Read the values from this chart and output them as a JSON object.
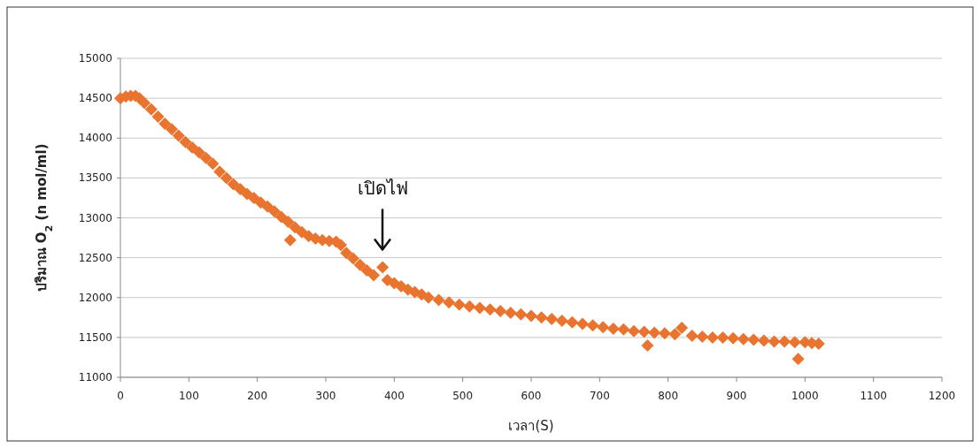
{
  "chart_data": {
    "type": "scatter",
    "xlabel": "เวลา(S)",
    "ylabel": "ปริมาณ O$_{2}$ (n mol/ml)",
    "xlim": [
      0,
      1200
    ],
    "xticks": [
      0,
      100,
      200,
      300,
      400,
      500,
      600,
      700,
      800,
      900,
      1000,
      1100,
      1200
    ],
    "ylim": [
      11000,
      15000
    ],
    "yticks": [
      11000,
      11500,
      12000,
      12500,
      13000,
      13500,
      14000,
      14500,
      15000
    ],
    "grid": "y",
    "marker": "diamond",
    "annotations": [
      "เปิดไฟ"
    ],
    "series": [
      {
        "color": "#e8742f",
        "x": [
          0,
          8,
          15,
          22,
          28,
          35,
          45,
          55,
          65,
          75,
          85,
          95,
          105,
          115,
          125,
          135,
          145,
          155,
          165,
          175,
          185,
          195,
          205,
          215,
          225,
          235,
          245,
          248,
          255,
          265,
          275,
          285,
          295,
          305,
          315,
          322,
          330,
          340,
          350,
          360,
          370,
          383,
          390,
          400,
          410,
          420,
          430,
          440,
          450,
          465,
          480,
          495,
          510,
          525,
          540,
          555,
          570,
          585,
          600,
          615,
          630,
          645,
          660,
          675,
          690,
          705,
          720,
          735,
          750,
          765,
          770,
          780,
          795,
          810,
          820,
          835,
          850,
          865,
          880,
          895,
          910,
          925,
          940,
          955,
          970,
          985,
          990,
          1000,
          1010,
          1020
        ],
        "values": [
          14500,
          14520,
          14530,
          14530,
          14500,
          14440,
          14360,
          14270,
          14180,
          14110,
          14030,
          13950,
          13880,
          13820,
          13750,
          13680,
          13580,
          13500,
          13420,
          13360,
          13300,
          13250,
          13190,
          13140,
          13080,
          13010,
          12950,
          12720,
          12880,
          12820,
          12770,
          12740,
          12720,
          12710,
          12700,
          12660,
          12560,
          12490,
          12410,
          12340,
          12280,
          12380,
          12220,
          12180,
          12140,
          12100,
          12070,
          12040,
          12000,
          11970,
          11940,
          11910,
          11890,
          11870,
          11850,
          11830,
          11810,
          11790,
          11770,
          11750,
          11730,
          11710,
          11690,
          11670,
          11650,
          11630,
          11610,
          11600,
          11580,
          11570,
          11400,
          11560,
          11550,
          11540,
          11620,
          11520,
          11510,
          11500,
          11500,
          11490,
          11480,
          11470,
          11460,
          11450,
          11450,
          11440,
          11230,
          11440,
          11430,
          11420
        ]
      }
    ]
  }
}
